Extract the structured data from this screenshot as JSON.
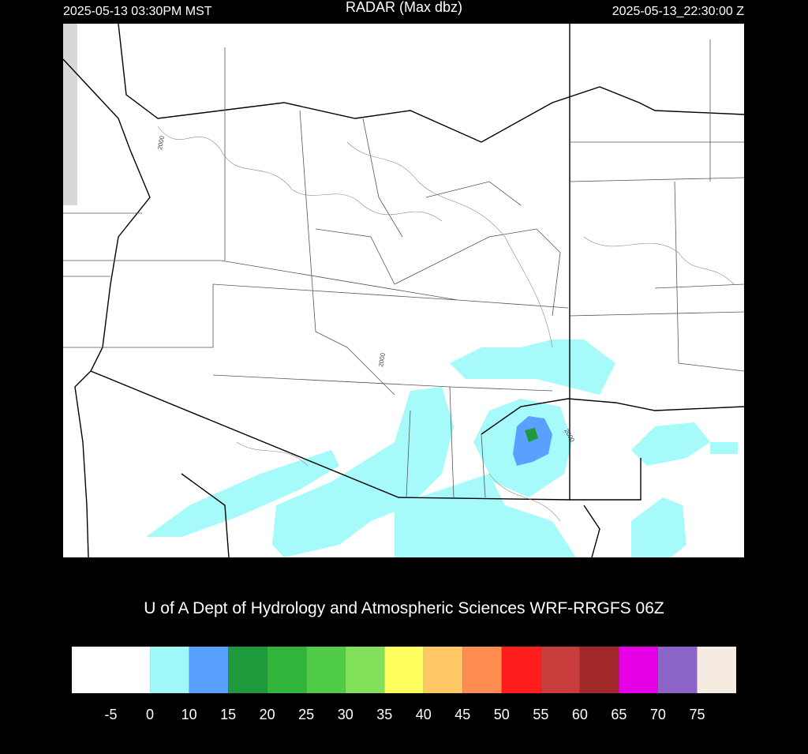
{
  "header": {
    "left": "2025-05-13 03:30PM MST",
    "title": "RADAR (Max dbz)",
    "right": "2025-05-13_22:30:00 Z"
  },
  "map": {
    "contour_labels": [
      "2000",
      "2000",
      "2000"
    ]
  },
  "credit": "U of A Dept of Hydrology and Atmospheric Sciences WRF-RRGFS 06Z",
  "colorbar": {
    "colors": [
      "#ffffff",
      "#a0f8f8",
      "#5aa0ff",
      "#1e9a3c",
      "#30b43a",
      "#50cc48",
      "#82e05a",
      "#ffff60",
      "#ffc864",
      "#ff8c50",
      "#ff1e1e",
      "#c83c3c",
      "#a02828",
      "#e600e6",
      "#8c64c8",
      "#f5ebe1"
    ],
    "labels": [
      "-5",
      "0",
      "10",
      "15",
      "20",
      "25",
      "30",
      "35",
      "40",
      "45",
      "50",
      "55",
      "60",
      "65",
      "70",
      "75"
    ]
  }
}
